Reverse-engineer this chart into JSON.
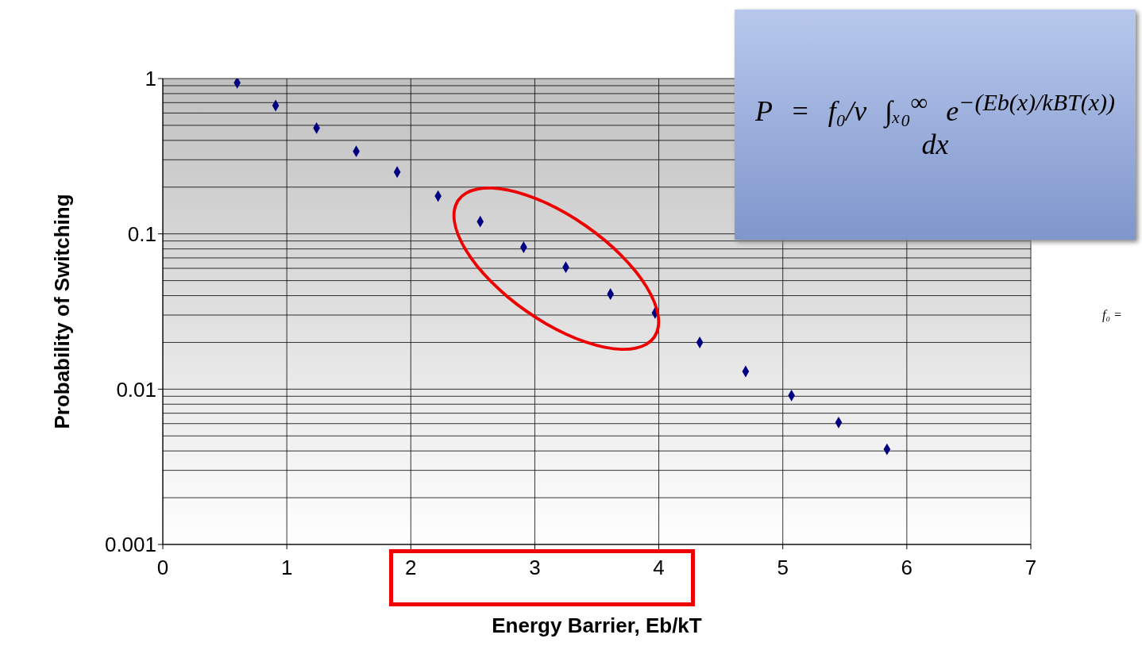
{
  "chart_data": {
    "type": "scatter",
    "xlabel": "Energy Barrier, Eb/kT",
    "ylabel": "Probability of Switching",
    "x": [
      0.6,
      0.91,
      1.24,
      1.56,
      1.89,
      2.22,
      2.56,
      2.91,
      3.25,
      3.61,
      3.97,
      4.33,
      4.7,
      5.07,
      5.45,
      5.84
    ],
    "series": [
      {
        "color": "#000080",
        "values": [
          0.94,
          0.67,
          0.48,
          0.34,
          0.25,
          0.175,
          0.12,
          0.082,
          0.061,
          0.041,
          0.031,
          0.02,
          0.013,
          0.0091,
          0.0061,
          0.0041
        ]
      }
    ],
    "xlim": [
      0,
      7
    ],
    "xticks": [
      0,
      1,
      2,
      3,
      4,
      5,
      6,
      7
    ],
    "ylim": [
      0.001,
      1
    ],
    "yticks": [
      0.001,
      0.01,
      0.1,
      1
    ],
    "log": "y",
    "grid": true,
    "marker": "diamond",
    "legend": false,
    "annotations": [
      "P = f₀/v ∫ₓ₀$^{∞}$ e$^{−(Eb(x)/kBT(x))}$ dx",
      "f₀ ="
    ]
  }
}
